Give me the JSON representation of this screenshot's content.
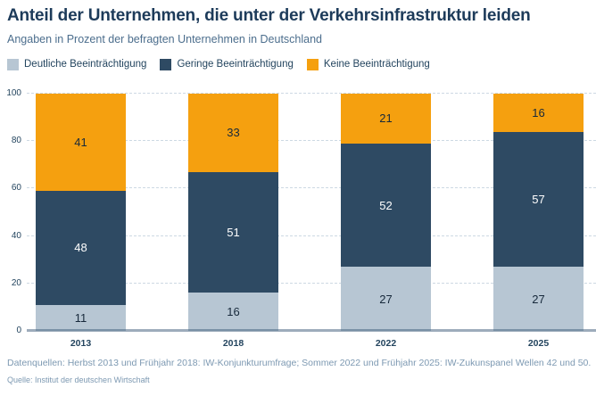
{
  "header": {
    "title": "Anteil der Unternehmen, die unter der Verkehrsinfrastruktur leiden",
    "subtitle": "Angaben in Prozent der befragten Unternehmen in Deutschland"
  },
  "chart_data": {
    "type": "bar",
    "stacked": true,
    "title": "Anteil der Unternehmen, die unter der Verkehrsinfrastruktur leiden",
    "subtitle": "Angaben in Prozent der befragten Unternehmen in Deutschland",
    "categories": [
      "2013",
      "2018",
      "2022",
      "2025"
    ],
    "series": [
      {
        "name": "Deutliche Beeinträchtigung",
        "color": "#b7c6d3",
        "label_color": "#17293b",
        "values": [
          11,
          16,
          27,
          27
        ]
      },
      {
        "name": "Geringe Beeinträchtigung",
        "color": "#2e4a63",
        "label_color": "#ffffff",
        "values": [
          48,
          51,
          52,
          57
        ]
      },
      {
        "name": "Keine Beeinträchtigung",
        "color": "#f5a00f",
        "label_color": "#17293b",
        "values": [
          41,
          33,
          21,
          16
        ]
      }
    ],
    "xlabel": "",
    "ylabel": "",
    "ylim": [
      0,
      100
    ],
    "yticks": [
      0,
      20,
      40,
      60,
      80,
      100
    ],
    "grid": true,
    "gridline_style": "dashed",
    "legend_position": "top",
    "colors": {
      "title_text": "#1d3b5a",
      "subtitle_text": "#4c6e8d",
      "axis_line": "#8ba1b5",
      "gridline": "#cdd9e3",
      "tick_text": "#24455f",
      "footer_text": "#7d99b2"
    }
  },
  "footer": {
    "line1": "Datenquellen: Herbst 2013 und Frühjahr 2018: IW-Konjunkturumfrage; Sommer 2022 und Frühjahr 2025: IW-Zukunspanel Wellen 42 und 50.",
    "line2": "Quelle: Institut der deutschen Wirtschaft"
  }
}
